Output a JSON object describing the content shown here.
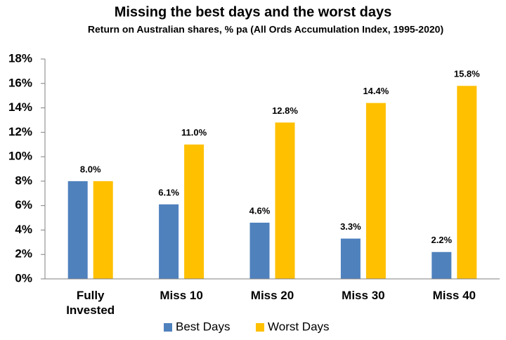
{
  "chart_data": {
    "type": "bar",
    "title": "Missing the best days and the worst days",
    "subtitle": "Return on Australian shares, % pa (All Ords Accumulation Index, 1995-2020)",
    "categories": [
      "Fully Invested",
      "Miss 10",
      "Miss 20",
      "Miss 30",
      "Miss 40"
    ],
    "series": [
      {
        "name": "Best Days",
        "color": "#4f81bd",
        "values": [
          8.0,
          6.1,
          4.6,
          3.3,
          2.2
        ],
        "value_labels": [
          null,
          "6.1%",
          "4.6%",
          "3.3%",
          "2.2%"
        ]
      },
      {
        "name": "Worst Days",
        "color": "#ffc000",
        "values": [
          8.0,
          11.0,
          12.8,
          14.4,
          15.8
        ],
        "value_labels": [
          "8.0%",
          "11.0%",
          "12.8%",
          "14.4%",
          "15.8%"
        ]
      }
    ],
    "ylim": [
      0,
      18
    ],
    "yticks": [
      {
        "value": 0,
        "label": "0%"
      },
      {
        "value": 2,
        "label": "2%"
      },
      {
        "value": 4,
        "label": "4%"
      },
      {
        "value": 6,
        "label": "6%"
      },
      {
        "value": 8,
        "label": "8%"
      },
      {
        "value": 10,
        "label": "10%"
      },
      {
        "value": 12,
        "label": "12%"
      },
      {
        "value": 14,
        "label": "14%"
      },
      {
        "value": 16,
        "label": "16%"
      },
      {
        "value": 18,
        "label": "18%"
      }
    ],
    "grid": false,
    "legend": "bottom"
  }
}
